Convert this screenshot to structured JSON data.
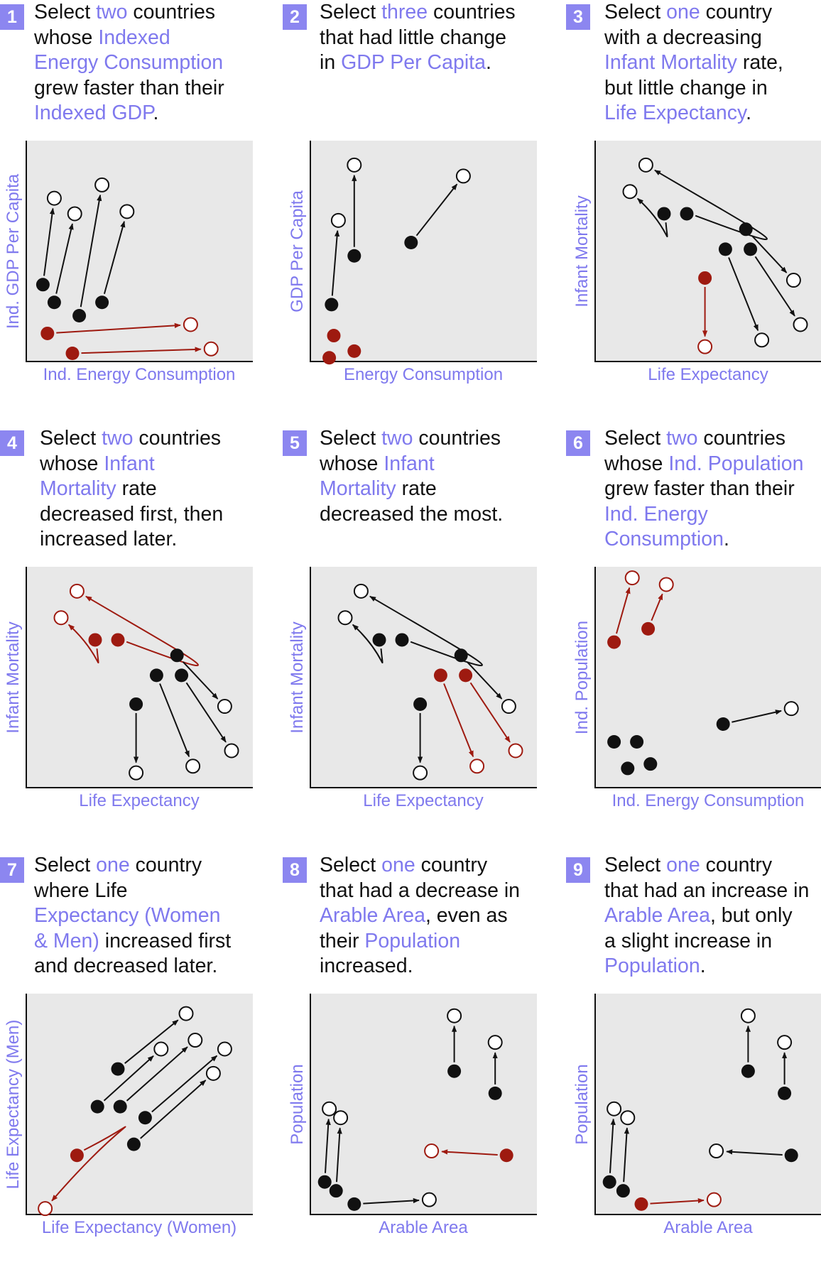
{
  "colors": {
    "accent": "#7f79ee",
    "badge": "#8c86f0",
    "highlight": "#9e1a10",
    "plot_bg": "#e8e8e8",
    "ink": "#111111"
  },
  "panels": [
    {
      "number": "1",
      "question": [
        [
          {
            "t": "Select "
          },
          {
            "t": "two",
            "hl": true
          },
          {
            "t": " countries"
          }
        ],
        [
          {
            "t": "whose "
          },
          {
            "t": "Indexed",
            "hl": true
          }
        ],
        [
          {
            "t": "Energy Consumption",
            "hl": true
          }
        ],
        [
          {
            "t": "grew faster than their"
          }
        ],
        [
          {
            "t": "Indexed GDP",
            "hl": true
          },
          {
            "t": "."
          }
        ]
      ],
      "xlabel": "Ind. Energy Consumption",
      "ylabel": "Ind. GDP Per Capita",
      "trajectories": [
        {
          "h": false,
          "pts": [
            [
              0.07,
              0.65
            ],
            [
              0.12,
              0.26
            ]
          ]
        },
        {
          "h": false,
          "pts": [
            [
              0.12,
              0.73
            ],
            [
              0.21,
              0.33
            ]
          ]
        },
        {
          "h": false,
          "pts": [
            [
              0.23,
              0.79
            ],
            [
              0.33,
              0.2
            ]
          ]
        },
        {
          "h": false,
          "pts": [
            [
              0.33,
              0.73
            ],
            [
              0.44,
              0.32
            ]
          ]
        },
        {
          "h": true,
          "pts": [
            [
              0.09,
              0.87
            ],
            [
              0.72,
              0.83
            ]
          ]
        },
        {
          "h": true,
          "pts": [
            [
              0.2,
              0.96
            ],
            [
              0.81,
              0.94
            ]
          ]
        }
      ]
    },
    {
      "number": "2",
      "question": [
        [
          {
            "t": "Select "
          },
          {
            "t": "three",
            "hl": true
          },
          {
            "t": " countries"
          }
        ],
        [
          {
            "t": "that had little change"
          }
        ],
        [
          {
            "t": "in "
          },
          {
            "t": "GDP Per Capita",
            "hl": true
          },
          {
            "t": "."
          }
        ]
      ],
      "xlabel": "Energy Consumption",
      "ylabel": "GDP Per Capita",
      "trajectories": [
        {
          "h": false,
          "pts": [
            [
              0.09,
              0.74
            ],
            [
              0.12,
              0.36
            ]
          ]
        },
        {
          "h": false,
          "pts": [
            [
              0.19,
              0.52
            ],
            [
              0.19,
              0.11
            ]
          ]
        },
        {
          "h": false,
          "pts": [
            [
              0.44,
              0.46
            ],
            [
              0.67,
              0.16
            ]
          ]
        },
        {
          "h": true,
          "pts": [
            [
              0.1,
              0.88
            ]
          ]
        },
        {
          "h": true,
          "pts": [
            [
              0.08,
              0.98
            ]
          ]
        },
        {
          "h": true,
          "pts": [
            [
              0.19,
              0.95
            ]
          ]
        }
      ]
    },
    {
      "number": "3",
      "question": [
        [
          {
            "t": "Select "
          },
          {
            "t": "one",
            "hl": true
          },
          {
            "t": " country"
          }
        ],
        [
          {
            "t": "with a decreasing"
          }
        ],
        [
          {
            "t": "Infant Mortality",
            "hl": true
          },
          {
            "t": " rate,"
          }
        ],
        [
          {
            "t": "but little change in"
          }
        ],
        [
          {
            "t": "Life Expectancy",
            "hl": true
          },
          {
            "t": "."
          }
        ]
      ],
      "xlabel": "Life Expectancy",
      "ylabel": "Infant Mortality",
      "trajectories": [
        {
          "h": false,
          "pts": [
            [
              0.3,
              0.33
            ],
            [
              0.31,
              0.38
            ],
            [
              0.15,
              0.23
            ]
          ]
        },
        {
          "h": false,
          "pts": [
            [
              0.4,
              0.33
            ],
            [
              0.7,
              0.4
            ],
            [
              0.22,
              0.11
            ]
          ]
        },
        {
          "h": false,
          "pts": [
            [
              0.66,
              0.4
            ],
            [
              0.87,
              0.63
            ]
          ]
        },
        {
          "h": false,
          "pts": [
            [
              0.57,
              0.49
            ],
            [
              0.73,
              0.9
            ]
          ]
        },
        {
          "h": false,
          "pts": [
            [
              0.68,
              0.49
            ],
            [
              0.9,
              0.83
            ]
          ]
        },
        {
          "h": true,
          "pts": [
            [
              0.48,
              0.62
            ],
            [
              0.48,
              0.93
            ]
          ]
        }
      ]
    },
    {
      "number": "4",
      "question": [
        [
          {
            "t": "Select "
          },
          {
            "t": "two",
            "hl": true
          },
          {
            "t": " countries"
          }
        ],
        [
          {
            "t": "whose "
          },
          {
            "t": "Infant",
            "hl": true
          }
        ],
        [
          {
            "t": "Mortality",
            "hl": true
          },
          {
            "t": " rate"
          }
        ],
        [
          {
            "t": "decreased first, then"
          }
        ],
        [
          {
            "t": "increased later."
          }
        ]
      ],
      "xlabel": "Life Expectancy",
      "ylabel": "Infant Mortality",
      "trajectories": [
        {
          "h": true,
          "pts": [
            [
              0.3,
              0.33
            ],
            [
              0.31,
              0.38
            ],
            [
              0.15,
              0.23
            ]
          ]
        },
        {
          "h": true,
          "pts": [
            [
              0.4,
              0.33
            ],
            [
              0.7,
              0.4
            ],
            [
              0.22,
              0.11
            ]
          ]
        },
        {
          "h": false,
          "pts": [
            [
              0.66,
              0.4
            ],
            [
              0.87,
              0.63
            ]
          ]
        },
        {
          "h": false,
          "pts": [
            [
              0.57,
              0.49
            ],
            [
              0.73,
              0.9
            ]
          ]
        },
        {
          "h": false,
          "pts": [
            [
              0.68,
              0.49
            ],
            [
              0.9,
              0.83
            ]
          ]
        },
        {
          "h": false,
          "pts": [
            [
              0.48,
              0.62
            ],
            [
              0.48,
              0.93
            ]
          ]
        }
      ]
    },
    {
      "number": "5",
      "question": [
        [
          {
            "t": "Select "
          },
          {
            "t": "two",
            "hl": true
          },
          {
            "t": " countries"
          }
        ],
        [
          {
            "t": "whose "
          },
          {
            "t": "Infant",
            "hl": true
          }
        ],
        [
          {
            "t": "Mortality",
            "hl": true
          },
          {
            "t": " rate"
          }
        ],
        [
          {
            "t": "decreased the most."
          }
        ]
      ],
      "xlabel": "Life Expectancy",
      "ylabel": "Infant Mortality",
      "trajectories": [
        {
          "h": false,
          "pts": [
            [
              0.3,
              0.33
            ],
            [
              0.31,
              0.38
            ],
            [
              0.15,
              0.23
            ]
          ]
        },
        {
          "h": false,
          "pts": [
            [
              0.4,
              0.33
            ],
            [
              0.7,
              0.4
            ],
            [
              0.22,
              0.11
            ]
          ]
        },
        {
          "h": false,
          "pts": [
            [
              0.66,
              0.4
            ],
            [
              0.87,
              0.63
            ]
          ]
        },
        {
          "h": true,
          "pts": [
            [
              0.57,
              0.49
            ],
            [
              0.73,
              0.9
            ]
          ]
        },
        {
          "h": true,
          "pts": [
            [
              0.68,
              0.49
            ],
            [
              0.9,
              0.83
            ]
          ]
        },
        {
          "h": false,
          "pts": [
            [
              0.48,
              0.62
            ],
            [
              0.48,
              0.93
            ]
          ]
        }
      ]
    },
    {
      "number": "6",
      "question": [
        [
          {
            "t": "Select "
          },
          {
            "t": "two",
            "hl": true
          },
          {
            "t": " countries"
          }
        ],
        [
          {
            "t": "whose "
          },
          {
            "t": "Ind. Population",
            "hl": true
          }
        ],
        [
          {
            "t": "grew faster than their"
          }
        ],
        [
          {
            "t": "Ind. Energy",
            "hl": true
          }
        ],
        [
          {
            "t": "Consumption",
            "hl": true
          },
          {
            "t": "."
          }
        ]
      ],
      "xlabel": "Ind. Energy Consumption",
      "ylabel": "Ind. Population",
      "trajectories": [
        {
          "h": true,
          "pts": [
            [
              0.08,
              0.34
            ],
            [
              0.16,
              0.05
            ]
          ]
        },
        {
          "h": true,
          "pts": [
            [
              0.23,
              0.28
            ],
            [
              0.31,
              0.08
            ]
          ]
        },
        {
          "h": false,
          "pts": [
            [
              0.56,
              0.71
            ],
            [
              0.86,
              0.64
            ]
          ]
        },
        {
          "h": false,
          "pts": [
            [
              0.08,
              0.79
            ]
          ]
        },
        {
          "h": false,
          "pts": [
            [
              0.18,
              0.79
            ]
          ]
        },
        {
          "h": false,
          "pts": [
            [
              0.14,
              0.91
            ]
          ]
        },
        {
          "h": false,
          "pts": [
            [
              0.24,
              0.89
            ]
          ]
        }
      ]
    },
    {
      "number": "7",
      "question": [
        [
          {
            "t": "Select "
          },
          {
            "t": "one",
            "hl": true
          },
          {
            "t": " country"
          }
        ],
        [
          {
            "t": "where Life"
          }
        ],
        [
          {
            "t": "Expectancy (Women",
            "hl": true
          }
        ],
        [
          {
            "t": "& Men)",
            "hl": true
          },
          {
            "t": " increased first"
          }
        ],
        [
          {
            "t": "and decreased later."
          }
        ]
      ],
      "xlabel": "Life Expectancy (Women)",
      "ylabel": "Life Expectancy (Men)",
      "trajectories": [
        {
          "h": false,
          "pts": [
            [
              0.4,
              0.34
            ],
            [
              0.7,
              0.09
            ]
          ]
        },
        {
          "h": false,
          "pts": [
            [
              0.31,
              0.51
            ],
            [
              0.59,
              0.25
            ]
          ]
        },
        {
          "h": false,
          "pts": [
            [
              0.41,
              0.51
            ],
            [
              0.74,
              0.21
            ]
          ]
        },
        {
          "h": false,
          "pts": [
            [
              0.52,
              0.56
            ],
            [
              0.87,
              0.25
            ]
          ]
        },
        {
          "h": false,
          "pts": [
            [
              0.47,
              0.68
            ],
            [
              0.82,
              0.36
            ]
          ]
        },
        {
          "h": true,
          "pts": [
            [
              0.22,
              0.73
            ],
            [
              0.4,
              0.59
            ],
            [
              0.08,
              0.97
            ]
          ]
        }
      ]
    },
    {
      "number": "8",
      "question": [
        [
          {
            "t": "Select "
          },
          {
            "t": "one",
            "hl": true
          },
          {
            "t": " country"
          }
        ],
        [
          {
            "t": "that had a decrease in"
          }
        ],
        [
          {
            "t": "Arable Area",
            "hl": true
          },
          {
            "t": ", even as"
          }
        ],
        [
          {
            "t": "their "
          },
          {
            "t": "Population",
            "hl": true
          }
        ],
        [
          {
            "t": "increased."
          }
        ]
      ],
      "xlabel": "Arable Area",
      "ylabel": "Population",
      "trajectories": [
        {
          "h": false,
          "pts": [
            [
              0.63,
              0.35
            ],
            [
              0.63,
              0.1
            ]
          ]
        },
        {
          "h": false,
          "pts": [
            [
              0.81,
              0.45
            ],
            [
              0.81,
              0.22
            ]
          ]
        },
        {
          "h": false,
          "pts": [
            [
              0.06,
              0.85
            ],
            [
              0.08,
              0.52
            ]
          ]
        },
        {
          "h": false,
          "pts": [
            [
              0.11,
              0.89
            ],
            [
              0.13,
              0.56
            ]
          ]
        },
        {
          "h": false,
          "pts": [
            [
              0.19,
              0.95
            ],
            [
              0.52,
              0.93
            ]
          ]
        },
        {
          "h": true,
          "pts": [
            [
              0.86,
              0.73
            ],
            [
              0.53,
              0.71
            ]
          ]
        }
      ]
    },
    {
      "number": "9",
      "question": [
        [
          {
            "t": "Select "
          },
          {
            "t": "one",
            "hl": true
          },
          {
            "t": " country"
          }
        ],
        [
          {
            "t": "that had an increase in"
          }
        ],
        [
          {
            "t": "Arable Area",
            "hl": true
          },
          {
            "t": ", but only"
          }
        ],
        [
          {
            "t": "a slight increase in"
          }
        ],
        [
          {
            "t": "Population",
            "hl": true
          },
          {
            "t": "."
          }
        ]
      ],
      "xlabel": "Arable Area",
      "ylabel": "Population",
      "trajectories": [
        {
          "h": false,
          "pts": [
            [
              0.67,
              0.35
            ],
            [
              0.67,
              0.1
            ]
          ]
        },
        {
          "h": false,
          "pts": [
            [
              0.83,
              0.45
            ],
            [
              0.83,
              0.22
            ]
          ]
        },
        {
          "h": false,
          "pts": [
            [
              0.06,
              0.85
            ],
            [
              0.08,
              0.52
            ]
          ]
        },
        {
          "h": false,
          "pts": [
            [
              0.12,
              0.89
            ],
            [
              0.14,
              0.56
            ]
          ]
        },
        {
          "h": false,
          "pts": [
            [
              0.86,
              0.73
            ],
            [
              0.53,
              0.71
            ]
          ]
        },
        {
          "h": true,
          "pts": [
            [
              0.2,
              0.95
            ],
            [
              0.52,
              0.93
            ]
          ]
        }
      ]
    }
  ]
}
